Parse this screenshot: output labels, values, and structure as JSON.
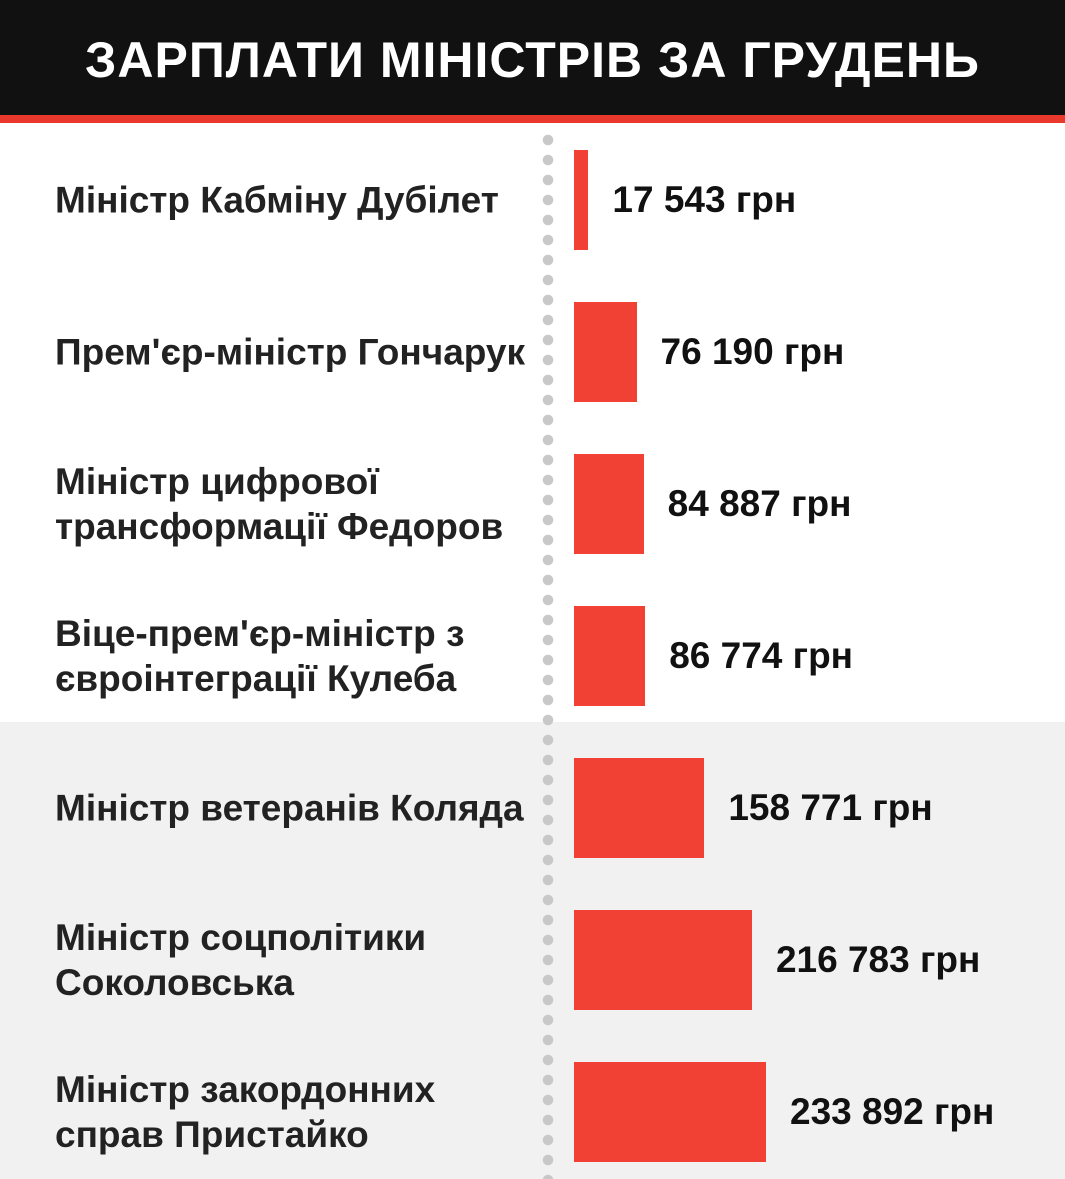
{
  "chart_data": {
    "type": "bar",
    "orientation": "horizontal",
    "title": "ЗАРПЛАТИ МІНІСТРІВ ЗА ГРУДЕНЬ",
    "categories": [
      "Міністр Кабміну Дубілет",
      "Прем'єр-міністр Гончарук",
      "Міністр цифрової трансформації Федоров",
      "Віце-прем'єр-міністр з євроінтеграції Кулеба",
      "Міністр ветеранів Коляда",
      "Міністр соцполітики Соколовська",
      "Міністр закордонних справ Пристайко"
    ],
    "values": [
      17543,
      76190,
      84887,
      86774,
      158771,
      216783,
      233892
    ],
    "value_labels": [
      "17 543 грн",
      "76 190 грн",
      "84 887 грн",
      "86 774 грн",
      "158 771 грн",
      "216 783 грн",
      "233 892 грн"
    ],
    "color": "#f04134"
  }
}
